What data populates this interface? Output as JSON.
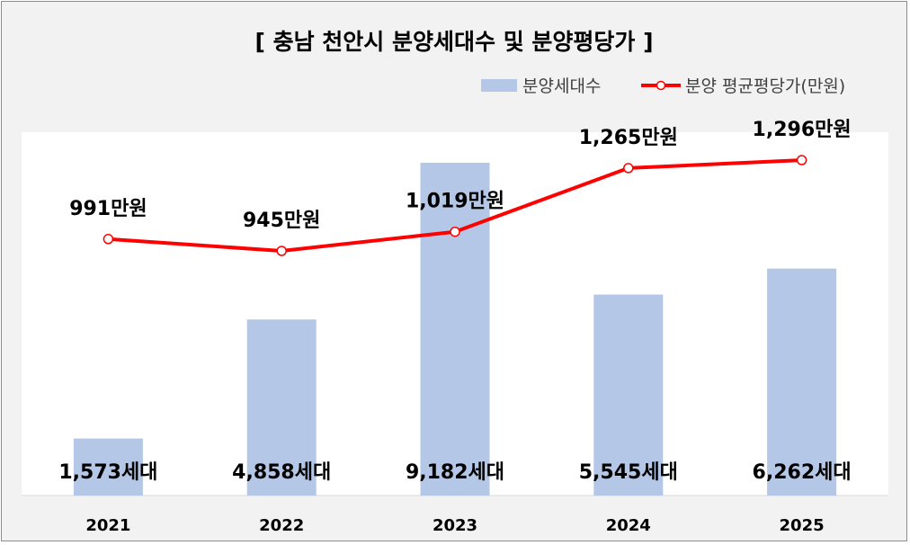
{
  "chart_data": {
    "type": "bar",
    "title": "[ 충남 천안시 분양세대수 및 분양평당가 ]",
    "categories": [
      "2021",
      "2022",
      "2023",
      "2024",
      "2025"
    ],
    "series": [
      {
        "name": "분양세대수",
        "type": "bar",
        "values": [
          1573,
          4858,
          9182,
          5545,
          6262
        ],
        "labels": [
          "1,573세대",
          "4,858세대",
          "9,182세대",
          "5,545세대",
          "6,262세대"
        ],
        "color": "#b4c7e7"
      },
      {
        "name": "분양 평균평당가(만원)",
        "type": "line",
        "values": [
          991,
          945,
          1019,
          1265,
          1296
        ],
        "labels": [
          "991만원",
          "945만원",
          "1,019만원",
          "1,265만원",
          "1,296만원"
        ],
        "color": "#ff0000"
      }
    ],
    "legend_position": "top-right",
    "grid": false
  }
}
